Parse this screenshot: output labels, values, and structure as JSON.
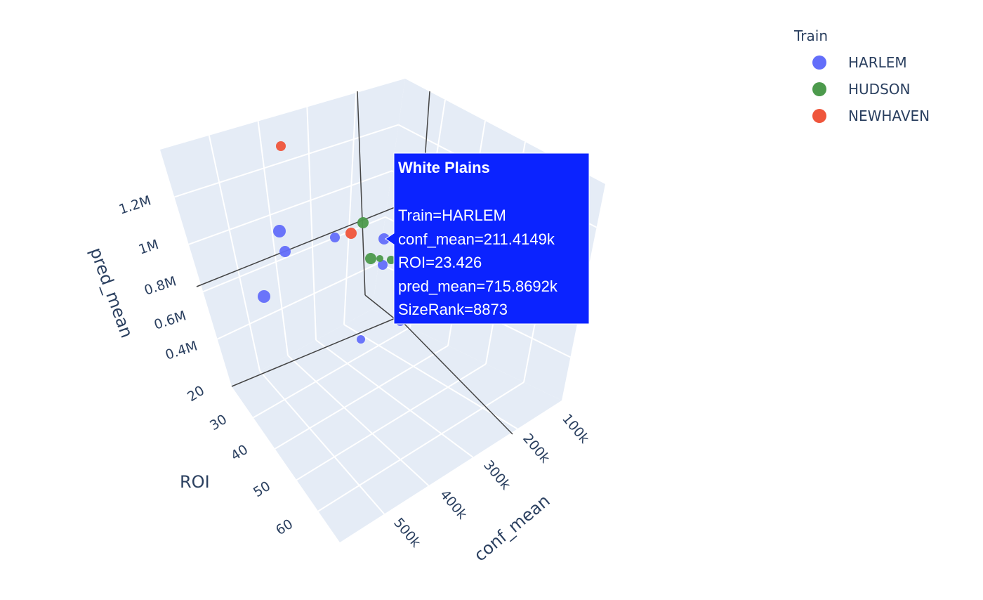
{
  "chart_data": {
    "type": "scatter",
    "subtype": "scatter3d",
    "legend": {
      "title": "Train",
      "placement": "top-right",
      "entries": [
        {
          "name": "HARLEM",
          "color": "#636efa"
        },
        {
          "name": "HUDSON",
          "color": "#4c9a4c"
        },
        {
          "name": "NEWHAVEN",
          "color": "#ef553b"
        }
      ]
    },
    "axes": {
      "x": {
        "title": "conf_mean",
        "ticks": [
          "100k",
          "200k",
          "300k",
          "400k",
          "500k"
        ]
      },
      "y": {
        "title": "ROI",
        "ticks": [
          "20",
          "30",
          "40",
          "50",
          "60"
        ]
      },
      "z": {
        "title": "pred_mean",
        "ticks": [
          "0.4M",
          "0.6M",
          "0.8M",
          "1M",
          "1.2M"
        ]
      }
    },
    "grid": true,
    "series": [
      {
        "name": "HARLEM",
        "points": [
          {
            "conf_mean": 520000,
            "ROI": 38,
            "pred_mean": 1000000
          },
          {
            "conf_mean": 500000,
            "ROI": 36,
            "pred_mean": 900000
          },
          {
            "conf_mean": 540000,
            "ROI": 45,
            "pred_mean": 700000
          },
          {
            "conf_mean": 330000,
            "ROI": 28,
            "pred_mean": 900000
          },
          {
            "conf_mean": 211414.9,
            "ROI": 23.426,
            "pred_mean": 715869.2,
            "SizeRank": 8873
          },
          {
            "conf_mean": 230000,
            "ROI": 25,
            "pred_mean": 650000
          },
          {
            "conf_mean": 280000,
            "ROI": 35,
            "pred_mean": 400000
          }
        ]
      },
      {
        "name": "HUDSON",
        "points": [
          {
            "conf_mean": 280000,
            "ROI": 25,
            "pred_mean": 1000000
          },
          {
            "conf_mean": 250000,
            "ROI": 28,
            "pred_mean": 700000
          },
          {
            "conf_mean": 240000,
            "ROI": 27,
            "pred_mean": 700000
          },
          {
            "conf_mean": 220000,
            "ROI": 26,
            "pred_mean": 700000
          }
        ]
      },
      {
        "name": "NEWHAVEN",
        "points": [
          {
            "conf_mean": 380000,
            "ROI": 22,
            "pred_mean": 1400000
          },
          {
            "conf_mean": 290000,
            "ROI": 26,
            "pred_mean": 950000
          }
        ]
      }
    ],
    "hover": {
      "title": "White Plains",
      "lines": [
        "Train=HARLEM",
        "conf_mean=211.4149k",
        "ROI=23.426",
        "pred_mean=715.8692k",
        "SizeRank=8873"
      ],
      "color": "#0b23ff"
    }
  }
}
